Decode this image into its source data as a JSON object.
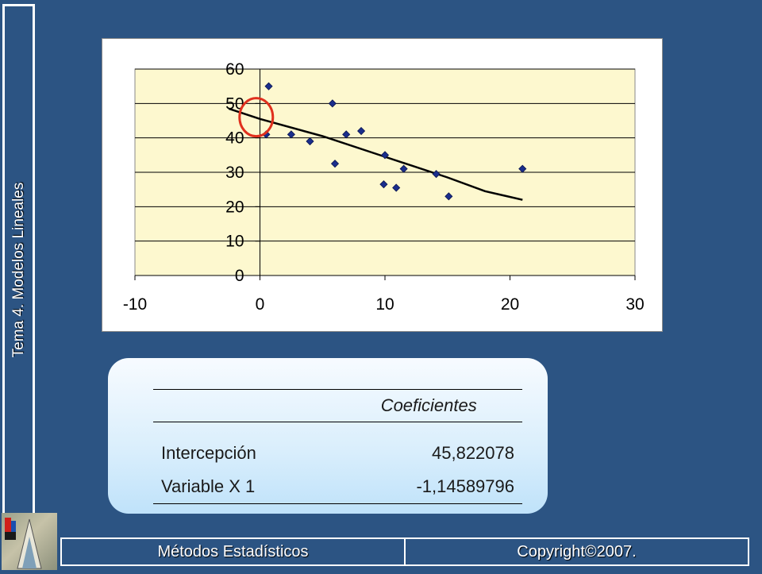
{
  "sidebar": {
    "title": "Tema 4. Modelos Lineales"
  },
  "chart_data": {
    "type": "scatter",
    "xlim": [
      -10,
      30
    ],
    "ylim": [
      0,
      60
    ],
    "x_ticks": [
      "-10",
      "0",
      "10",
      "20",
      "30"
    ],
    "y_ticks": [
      "0",
      "10",
      "20",
      "30",
      "40",
      "50",
      "60"
    ],
    "grid": true,
    "plot_background": "#fdf8cf",
    "marker_color": "#1a2e8c",
    "series": [
      {
        "points": [
          [
            0.7,
            55.0
          ],
          [
            0.5,
            41.0
          ],
          [
            2.5,
            41.0
          ],
          [
            4.0,
            39.0
          ],
          [
            5.8,
            50.0
          ],
          [
            6.0,
            32.5
          ],
          [
            6.9,
            41.0
          ],
          [
            8.1,
            42.0
          ],
          [
            10.0,
            35.0
          ],
          [
            9.9,
            26.5
          ],
          [
            10.9,
            25.5
          ],
          [
            11.5,
            31.0
          ],
          [
            14.1,
            29.5
          ],
          [
            15.1,
            23.0
          ],
          [
            21.0,
            31.0
          ]
        ]
      }
    ],
    "trendline": {
      "color": "#000000",
      "points": [
        [
          -2.5,
          48.5
        ],
        [
          0,
          45.5
        ],
        [
          5,
          40.5
        ],
        [
          10,
          34.5
        ],
        [
          15,
          28.5
        ],
        [
          18,
          24.5
        ],
        [
          21,
          22.0
        ]
      ]
    },
    "highlight": {
      "center": [
        -0.3,
        46
      ],
      "color": "#e0301e"
    }
  },
  "coef_table": {
    "header": "Coeficientes",
    "rows": [
      {
        "label": "Intercepción",
        "value": "45,822078"
      },
      {
        "label": "Variable X 1",
        "value": "-1,14589796"
      }
    ]
  },
  "footer": {
    "left": "Métodos Estadísticos",
    "right": "Copyright©2007."
  }
}
